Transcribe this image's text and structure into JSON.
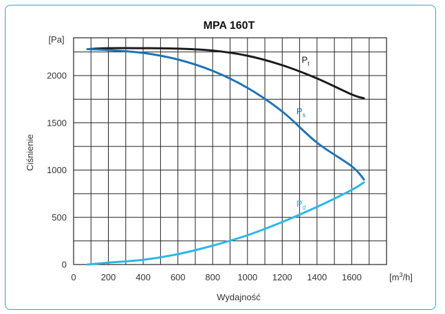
{
  "chart_data": {
    "type": "line",
    "title": "MPA 160T",
    "xlabel": "Wydajność",
    "ylabel": "Ciśnienie",
    "x_unit": {
      "pre": "[m",
      "sup": "3",
      "post": "/h]"
    },
    "y_unit": "[Pa]",
    "xlim": [
      0,
      1800
    ],
    "ylim": [
      0,
      2400
    ],
    "x_ticks": [
      0,
      200,
      400,
      600,
      800,
      1000,
      1200,
      1400,
      1600
    ],
    "y_ticks": [
      0,
      500,
      1000,
      1500,
      2000
    ],
    "grid": true,
    "series": [
      {
        "name": "Pt",
        "base": "P",
        "sub": "t",
        "color": "#1a1a1a",
        "x": [
          80,
          200,
          400,
          600,
          800,
          1000,
          1200,
          1400,
          1600,
          1670
        ],
        "y": [
          2280,
          2290,
          2290,
          2285,
          2265,
          2210,
          2110,
          1970,
          1800,
          1760
        ]
      },
      {
        "name": "Ps",
        "base": "P",
        "sub": "s",
        "color": "#1f73b7",
        "x": [
          80,
          200,
          400,
          600,
          800,
          1000,
          1200,
          1400,
          1600,
          1670
        ],
        "y": [
          2280,
          2270,
          2240,
          2170,
          2050,
          1870,
          1620,
          1290,
          1040,
          900
        ]
      },
      {
        "name": "Pd",
        "base": "P",
        "sub": "d",
        "color": "#2ab6ea",
        "x": [
          80,
          200,
          400,
          600,
          800,
          1000,
          1200,
          1400,
          1600,
          1670
        ],
        "y": [
          0,
          20,
          50,
          110,
          200,
          310,
          450,
          610,
          790,
          870
        ]
      }
    ]
  }
}
